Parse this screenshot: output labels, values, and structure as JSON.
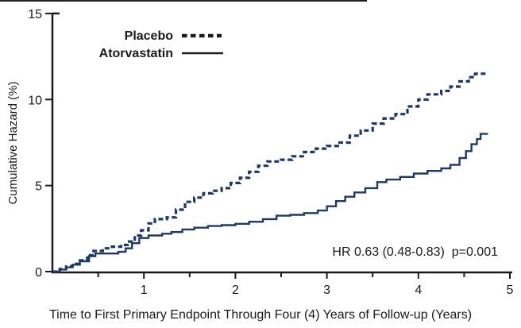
{
  "figure_type": "survival-curve-figure",
  "colors": {
    "curve": "#1F3864",
    "axis": "#1a1a1a",
    "text": "#1a1a1a",
    "legend_sample": "#1b1b1b",
    "background": "#ffffff"
  },
  "legend": {
    "placebo_label": "Placebo",
    "atorvastatin_label": "Atorvastatin"
  },
  "annotation": "HR 0.63 (0.48-0.83)  p=0.001",
  "chart_data": {
    "type": "line",
    "subtype": "step-cumulative-hazard",
    "title": "",
    "xlabel": "Time to First Primary Endpoint Through Four (4) Years of Follow-up (Years)",
    "ylabel": "Cumulative Hazard (%)",
    "xlim": [
      0,
      5
    ],
    "ylim": [
      0,
      15
    ],
    "x_major_ticks": [
      1,
      2,
      3,
      4,
      5
    ],
    "x_minor_ticks": [
      0.5,
      1.5,
      2.5,
      3.5,
      4.5
    ],
    "y_ticks": [
      0,
      5,
      10,
      15
    ],
    "grid": false,
    "legend_position": "top-left-inside",
    "annotation": "HR 0.63 (0.48-0.83)  p=0.001",
    "series": [
      {
        "name": "Placebo",
        "style": "dashed",
        "points": [
          [
            0,
            0
          ],
          [
            0.08,
            0.15
          ],
          [
            0.15,
            0.3
          ],
          [
            0.22,
            0.45
          ],
          [
            0.3,
            0.65
          ],
          [
            0.38,
            0.95
          ],
          [
            0.45,
            1.2
          ],
          [
            0.55,
            1.35
          ],
          [
            0.65,
            1.45
          ],
          [
            0.75,
            1.55
          ],
          [
            0.82,
            1.75
          ],
          [
            0.9,
            2.1
          ],
          [
            0.97,
            2.4
          ],
          [
            1.05,
            2.8
          ],
          [
            1.12,
            3.05
          ],
          [
            1.25,
            3.15
          ],
          [
            1.35,
            3.6
          ],
          [
            1.45,
            4.05
          ],
          [
            1.55,
            4.3
          ],
          [
            1.65,
            4.55
          ],
          [
            1.75,
            4.7
          ],
          [
            1.85,
            4.85
          ],
          [
            1.95,
            5.15
          ],
          [
            2.05,
            5.45
          ],
          [
            2.15,
            5.8
          ],
          [
            2.25,
            6.15
          ],
          [
            2.35,
            6.4
          ],
          [
            2.5,
            6.5
          ],
          [
            2.62,
            6.7
          ],
          [
            2.75,
            6.95
          ],
          [
            2.88,
            7.15
          ],
          [
            3.0,
            7.3
          ],
          [
            3.12,
            7.5
          ],
          [
            3.25,
            7.9
          ],
          [
            3.37,
            8.2
          ],
          [
            3.5,
            8.6
          ],
          [
            3.62,
            8.9
          ],
          [
            3.75,
            9.15
          ],
          [
            3.88,
            9.6
          ],
          [
            4.0,
            10.0
          ],
          [
            4.1,
            10.3
          ],
          [
            4.25,
            10.5
          ],
          [
            4.35,
            10.75
          ],
          [
            4.45,
            11.05
          ],
          [
            4.55,
            11.3
          ],
          [
            4.62,
            11.5
          ],
          [
            4.72,
            11.6
          ]
        ]
      },
      {
        "name": "Atorvastatin",
        "style": "solid",
        "points": [
          [
            0,
            0
          ],
          [
            0.08,
            0.12
          ],
          [
            0.15,
            0.25
          ],
          [
            0.22,
            0.4
          ],
          [
            0.3,
            0.6
          ],
          [
            0.4,
            0.9
          ],
          [
            0.47,
            1.05
          ],
          [
            0.62,
            1.05
          ],
          [
            0.72,
            1.15
          ],
          [
            0.8,
            1.35
          ],
          [
            0.87,
            1.65
          ],
          [
            0.95,
            1.95
          ],
          [
            1.05,
            2.1
          ],
          [
            1.2,
            2.2
          ],
          [
            1.3,
            2.3
          ],
          [
            1.42,
            2.45
          ],
          [
            1.55,
            2.55
          ],
          [
            1.7,
            2.65
          ],
          [
            1.85,
            2.7
          ],
          [
            2.0,
            2.78
          ],
          [
            2.15,
            2.9
          ],
          [
            2.3,
            3.05
          ],
          [
            2.45,
            3.25
          ],
          [
            2.6,
            3.3
          ],
          [
            2.75,
            3.4
          ],
          [
            2.9,
            3.55
          ],
          [
            3.0,
            3.8
          ],
          [
            3.1,
            4.1
          ],
          [
            3.2,
            4.35
          ],
          [
            3.3,
            4.6
          ],
          [
            3.42,
            4.85
          ],
          [
            3.55,
            5.2
          ],
          [
            3.65,
            5.35
          ],
          [
            3.8,
            5.5
          ],
          [
            3.95,
            5.7
          ],
          [
            4.1,
            5.85
          ],
          [
            4.25,
            6.0
          ],
          [
            4.35,
            6.2
          ],
          [
            4.45,
            6.6
          ],
          [
            4.52,
            7.0
          ],
          [
            4.58,
            7.4
          ],
          [
            4.64,
            7.7
          ],
          [
            4.68,
            8.0
          ],
          [
            4.76,
            8.0
          ]
        ]
      }
    ]
  }
}
